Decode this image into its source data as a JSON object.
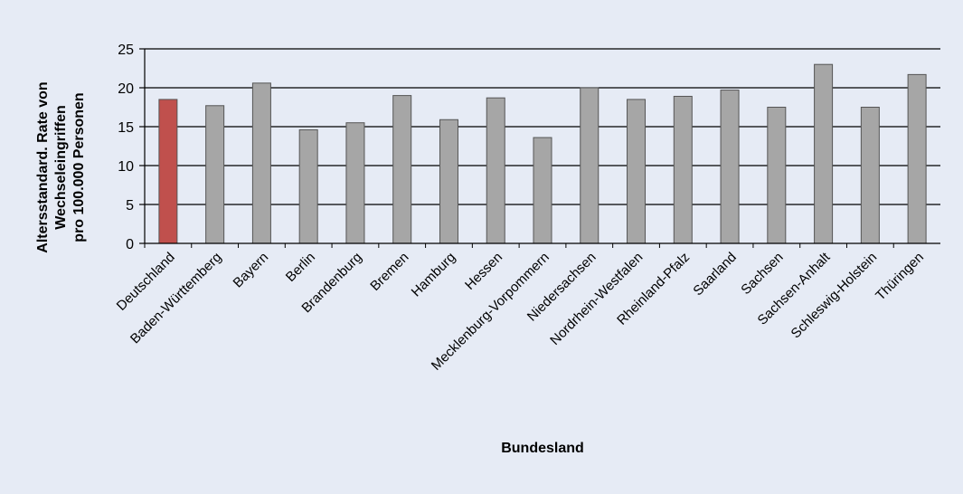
{
  "chart_data": {
    "type": "bar",
    "title": "",
    "xlabel": "Bundesland",
    "ylabel_lines": [
      "Altersstandard. Rate von",
      "Wechseleingriffen",
      "pro 100.000 Personen"
    ],
    "ylim": [
      0,
      25
    ],
    "yticks": [
      0,
      5,
      10,
      15,
      20,
      25
    ],
    "grid": true,
    "categories": [
      "Deutschland",
      "Baden-Württemberg",
      "Bayern",
      "Berlin",
      "Brandenburg",
      "Bremen",
      "Hamburg",
      "Hessen",
      "Mecklenburg-Vorpommern",
      "Niedersachsen",
      "Nordrhein-Westfalen",
      "Rheinland-Pfalz",
      "Saarland",
      "Sachsen",
      "Sachsen-Anhalt",
      "Schleswig-Holstein",
      "Thüringen"
    ],
    "values": [
      18.5,
      17.7,
      20.6,
      14.6,
      15.5,
      19.0,
      15.9,
      18.7,
      13.6,
      20.0,
      18.5,
      18.9,
      19.7,
      17.5,
      23.0,
      17.5,
      21.7
    ],
    "highlight_index": 0,
    "colors": {
      "bar": "#a6a6a6",
      "bar_highlight": "#c0504d",
      "bar_stroke": "#555555",
      "grid": "#000000",
      "background": "#e6ebf5"
    }
  }
}
